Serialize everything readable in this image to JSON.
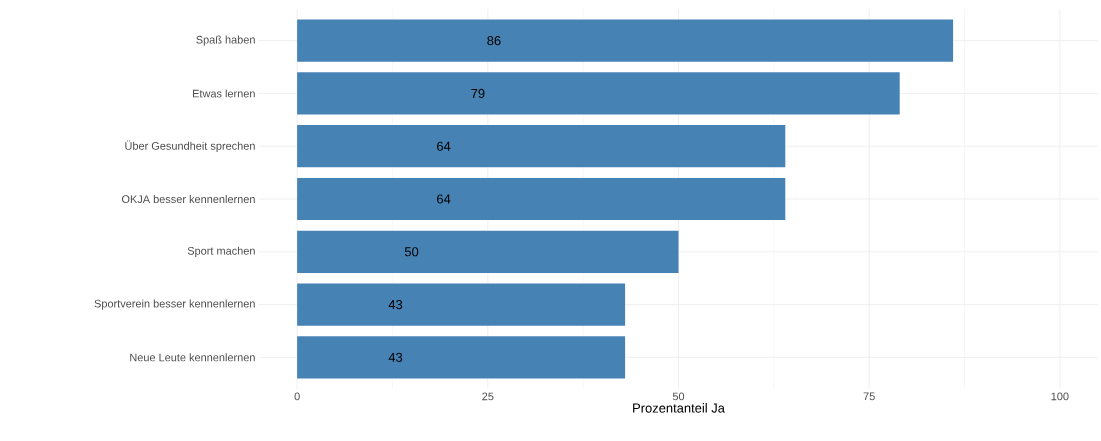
{
  "chart_data": {
    "type": "bar",
    "orientation": "horizontal",
    "xlabel": "Prozentanteil Ja",
    "categories": [
      "Spaß haben",
      "Etwas lernen",
      "Über Gesundheit sprechen",
      "OKJA besser kennenlernen",
      "Sport machen",
      "Sportverein besser kennenlernen",
      "Neue Leute kennenlernen"
    ],
    "values": [
      86,
      79,
      64,
      64,
      50,
      43,
      43
    ],
    "color": "#4682b4",
    "xlim": [
      -5,
      105
    ],
    "xticks": [
      0,
      25,
      50,
      75,
      100
    ],
    "grid": true,
    "data_labels": true
  }
}
